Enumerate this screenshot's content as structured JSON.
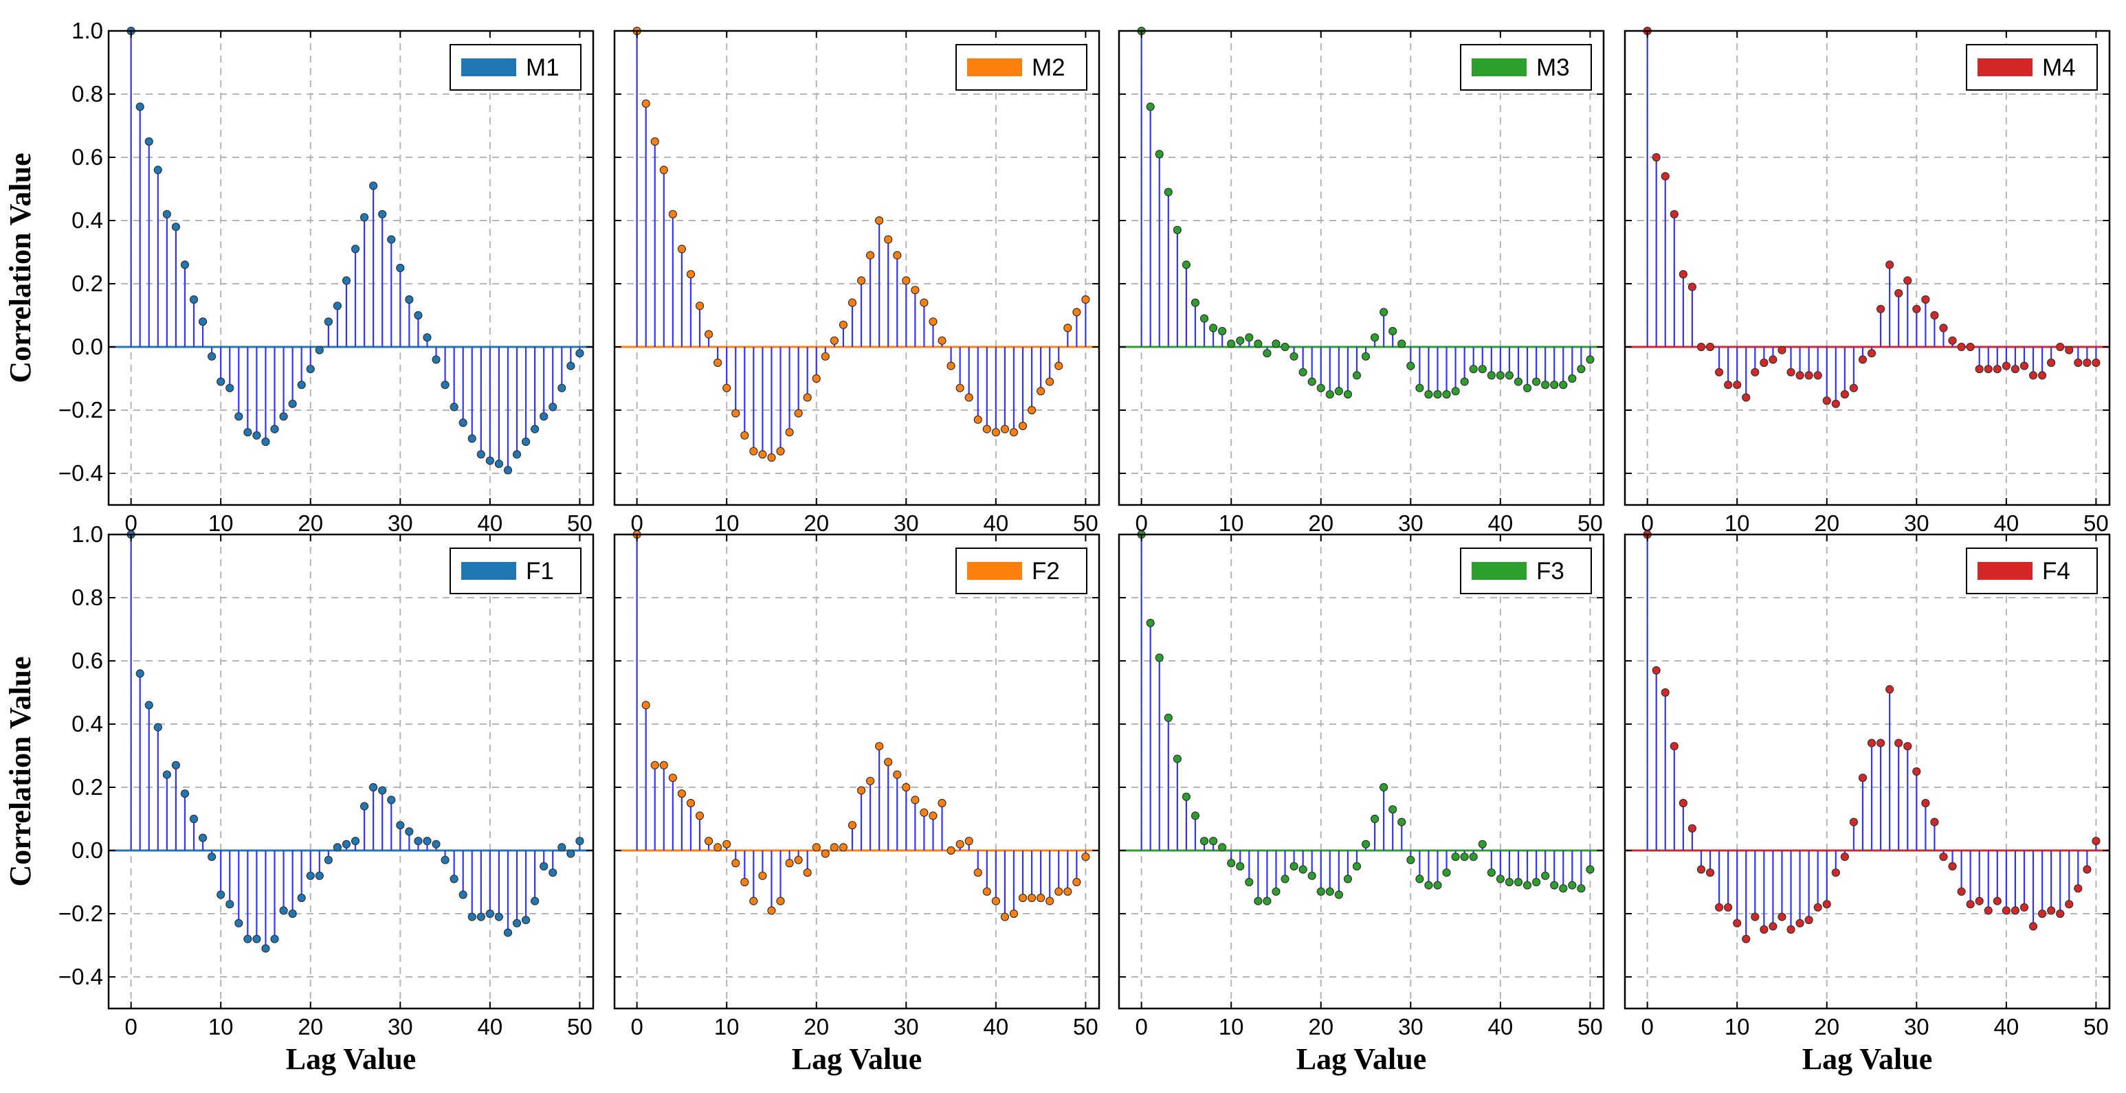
{
  "figure": {
    "xlabel": "Lag Value",
    "ylabel": "Correlation Value",
    "xlim": [
      -2.5,
      51.5
    ],
    "ylim": [
      -0.5,
      1.0
    ],
    "xticks": [
      0,
      10,
      20,
      30,
      40,
      50
    ],
    "yticks": [
      1.0,
      0.8,
      0.6,
      0.4,
      0.2,
      0.0,
      -0.2,
      -0.4
    ],
    "ytick_labels": [
      "1.0",
      "0.8",
      "0.6",
      "0.4",
      "0.2",
      "0.0",
      "−0.2",
      "−0.4"
    ],
    "stem_color": "#3333ff",
    "grid": true
  },
  "chart_data": [
    {
      "type": "stem",
      "title": "M1",
      "color": "#1f77b4",
      "legend": "M1",
      "values": [
        1.0,
        0.76,
        0.65,
        0.56,
        0.42,
        0.38,
        0.26,
        0.15,
        0.08,
        -0.03,
        -0.11,
        -0.13,
        -0.22,
        -0.27,
        -0.28,
        -0.3,
        -0.26,
        -0.22,
        -0.18,
        -0.12,
        -0.07,
        -0.01,
        0.08,
        0.13,
        0.21,
        0.31,
        0.41,
        0.51,
        0.42,
        0.34,
        0.25,
        0.15,
        0.1,
        0.03,
        -0.04,
        -0.12,
        -0.19,
        -0.24,
        -0.29,
        -0.34,
        -0.36,
        -0.37,
        -0.39,
        -0.34,
        -0.3,
        -0.26,
        -0.22,
        -0.19,
        -0.13,
        -0.06,
        -0.02
      ]
    },
    {
      "type": "stem",
      "title": "M2",
      "color": "#ff7f0e",
      "legend": "M2",
      "values": [
        1.0,
        0.77,
        0.65,
        0.56,
        0.42,
        0.31,
        0.23,
        0.13,
        0.04,
        -0.05,
        -0.13,
        -0.21,
        -0.28,
        -0.33,
        -0.34,
        -0.35,
        -0.33,
        -0.27,
        -0.21,
        -0.16,
        -0.1,
        -0.03,
        0.02,
        0.07,
        0.14,
        0.21,
        0.29,
        0.4,
        0.34,
        0.29,
        0.21,
        0.18,
        0.14,
        0.08,
        0.02,
        -0.06,
        -0.13,
        -0.16,
        -0.23,
        -0.26,
        -0.27,
        -0.26,
        -0.27,
        -0.25,
        -0.2,
        -0.14,
        -0.11,
        -0.06,
        0.06,
        0.11,
        0.15
      ]
    },
    {
      "type": "stem",
      "title": "M3",
      "color": "#2ca02c",
      "legend": "M3",
      "values": [
        1.0,
        0.76,
        0.61,
        0.49,
        0.37,
        0.26,
        0.14,
        0.09,
        0.06,
        0.05,
        0.01,
        0.02,
        0.03,
        0.01,
        -0.02,
        0.01,
        0.0,
        -0.03,
        -0.08,
        -0.11,
        -0.13,
        -0.15,
        -0.14,
        -0.15,
        -0.09,
        -0.03,
        0.03,
        0.11,
        0.05,
        0.01,
        -0.06,
        -0.13,
        -0.15,
        -0.15,
        -0.15,
        -0.14,
        -0.11,
        -0.07,
        -0.07,
        -0.09,
        -0.09,
        -0.09,
        -0.11,
        -0.13,
        -0.11,
        -0.12,
        -0.12,
        -0.12,
        -0.1,
        -0.07,
        -0.04
      ]
    },
    {
      "type": "stem",
      "title": "M4",
      "color": "#d62728",
      "legend": "M4",
      "values": [
        1.0,
        0.6,
        0.54,
        0.42,
        0.23,
        0.19,
        0.0,
        0.0,
        -0.08,
        -0.12,
        -0.12,
        -0.16,
        -0.08,
        -0.05,
        -0.04,
        -0.01,
        -0.08,
        -0.09,
        -0.09,
        -0.09,
        -0.17,
        -0.18,
        -0.15,
        -0.13,
        -0.04,
        -0.02,
        0.12,
        0.26,
        0.17,
        0.21,
        0.12,
        0.15,
        0.1,
        0.06,
        0.02,
        0.0,
        0.0,
        -0.07,
        -0.07,
        -0.07,
        -0.06,
        -0.07,
        -0.06,
        -0.09,
        -0.09,
        -0.05,
        0.0,
        -0.01,
        -0.05,
        -0.05,
        -0.05
      ]
    },
    {
      "type": "stem",
      "title": "F1",
      "color": "#1f77b4",
      "legend": "F1",
      "values": [
        1.0,
        0.56,
        0.46,
        0.39,
        0.24,
        0.27,
        0.18,
        0.1,
        0.04,
        -0.02,
        -0.14,
        -0.17,
        -0.23,
        -0.28,
        -0.28,
        -0.31,
        -0.28,
        -0.19,
        -0.2,
        -0.15,
        -0.08,
        -0.08,
        -0.03,
        0.01,
        0.02,
        0.03,
        0.14,
        0.2,
        0.19,
        0.16,
        0.08,
        0.06,
        0.03,
        0.03,
        0.02,
        -0.03,
        -0.09,
        -0.14,
        -0.21,
        -0.21,
        -0.2,
        -0.21,
        -0.26,
        -0.23,
        -0.22,
        -0.16,
        -0.05,
        -0.07,
        0.01,
        -0.01,
        0.03
      ]
    },
    {
      "type": "stem",
      "title": "F2",
      "color": "#ff7f0e",
      "legend": "F2",
      "values": [
        1.0,
        0.46,
        0.27,
        0.27,
        0.23,
        0.18,
        0.15,
        0.11,
        0.03,
        0.01,
        0.02,
        -0.04,
        -0.1,
        -0.16,
        -0.08,
        -0.19,
        -0.16,
        -0.04,
        -0.03,
        -0.07,
        0.01,
        -0.01,
        0.01,
        0.01,
        0.08,
        0.19,
        0.22,
        0.33,
        0.28,
        0.24,
        0.2,
        0.16,
        0.12,
        0.11,
        0.15,
        0.0,
        0.02,
        0.03,
        -0.07,
        -0.13,
        -0.16,
        -0.21,
        -0.2,
        -0.15,
        -0.15,
        -0.15,
        -0.16,
        -0.13,
        -0.13,
        -0.1,
        -0.02
      ]
    },
    {
      "type": "stem",
      "title": "F3",
      "color": "#2ca02c",
      "legend": "F3",
      "values": [
        1.0,
        0.72,
        0.61,
        0.42,
        0.29,
        0.17,
        0.11,
        0.03,
        0.03,
        0.01,
        -0.04,
        -0.05,
        -0.1,
        -0.16,
        -0.16,
        -0.13,
        -0.09,
        -0.05,
        -0.06,
        -0.08,
        -0.13,
        -0.13,
        -0.14,
        -0.09,
        -0.05,
        0.02,
        0.1,
        0.2,
        0.13,
        0.09,
        -0.03,
        -0.09,
        -0.11,
        -0.11,
        -0.07,
        -0.02,
        -0.02,
        -0.02,
        0.02,
        -0.07,
        -0.09,
        -0.1,
        -0.1,
        -0.11,
        -0.1,
        -0.08,
        -0.11,
        -0.12,
        -0.11,
        -0.12,
        -0.06
      ]
    },
    {
      "type": "stem",
      "title": "F4",
      "color": "#d62728",
      "legend": "F4",
      "values": [
        1.0,
        0.57,
        0.5,
        0.33,
        0.15,
        0.07,
        -0.06,
        -0.07,
        -0.18,
        -0.18,
        -0.23,
        -0.28,
        -0.21,
        -0.25,
        -0.24,
        -0.21,
        -0.25,
        -0.23,
        -0.22,
        -0.18,
        -0.17,
        -0.07,
        -0.02,
        0.09,
        0.23,
        0.34,
        0.34,
        0.51,
        0.34,
        0.33,
        0.25,
        0.15,
        0.09,
        -0.02,
        -0.05,
        -0.13,
        -0.17,
        -0.16,
        -0.19,
        -0.16,
        -0.19,
        -0.19,
        -0.18,
        -0.24,
        -0.2,
        -0.19,
        -0.2,
        -0.17,
        -0.12,
        -0.06,
        0.03
      ]
    }
  ]
}
